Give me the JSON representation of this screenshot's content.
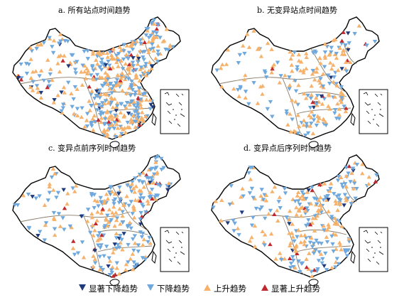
{
  "panels": [
    {
      "title": "a. 所有站点时间趋势",
      "density": "high"
    },
    {
      "title": "b. 无变异站点时间趋势",
      "density": "low"
    },
    {
      "title": "c. 变异点前序列时间趋势",
      "density": "medium"
    },
    {
      "title": "d. 变异点后序列时间趋势",
      "density": "medium"
    }
  ],
  "legend": {
    "items": [
      {
        "label": "显著下降趋势",
        "symbol": "down-triangle",
        "color": "#1f3a7a"
      },
      {
        "label": "下降趋势",
        "symbol": "down-triangle",
        "color": "#6fa8dc"
      },
      {
        "label": "上升趋势",
        "symbol": "up-triangle",
        "color": "#f6b26b"
      },
      {
        "label": "显著上升趋势",
        "symbol": "up-triangle",
        "color": "#c0282d"
      }
    ]
  },
  "colors": {
    "outline": "#000000",
    "region_lines": "#8b7d6b",
    "sig_down": "#1f3a7a",
    "down": "#6fa8dc",
    "up": "#f6b26b",
    "sig_up": "#c0282d"
  }
}
